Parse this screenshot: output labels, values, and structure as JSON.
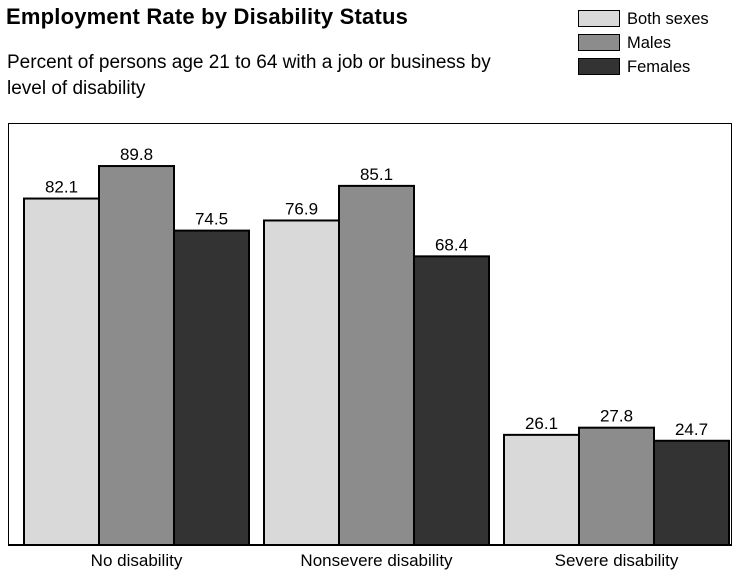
{
  "chart_data": {
    "type": "bar",
    "title": "Employment Rate by Disability Status",
    "subtitle": "Percent of persons age 21 to 64 with a job or business by level of disability",
    "categories": [
      "No disability",
      "Nonsevere disability",
      "Severe disability"
    ],
    "series": [
      {
        "name": "Both sexes",
        "values": [
          82.1,
          76.9,
          26.1
        ],
        "color": "#d9d9d9"
      },
      {
        "name": "Males",
        "values": [
          89.8,
          85.1,
          27.8
        ],
        "color": "#8c8c8c"
      },
      {
        "name": "Females",
        "values": [
          74.5,
          68.4,
          24.7
        ],
        "color": "#333333"
      }
    ],
    "value_labels": [
      [
        "82.1",
        "76.9",
        "26.1"
      ],
      [
        "89.8",
        "85.1",
        "27.8"
      ],
      [
        "74.5",
        "68.4",
        "24.7"
      ]
    ],
    "ylim": [
      0,
      100
    ],
    "grid": false,
    "legend_position": "top-right"
  }
}
